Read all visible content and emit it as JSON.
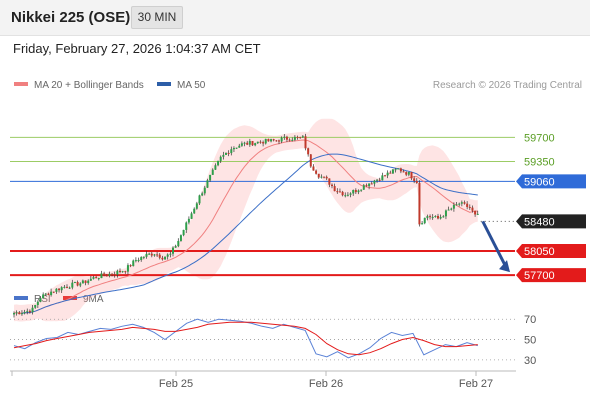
{
  "header": {
    "title": "Nikkei 225 (OSE)",
    "interval": "30 MIN",
    "datetime": "Friday, February 27, 2026 1:04:37 AM CET"
  },
  "legend": {
    "bollinger": "MA 20 + Bollinger Bands",
    "ma50": "MA 50",
    "rsi": "RSI",
    "rsi_ma": "9MA"
  },
  "credit": "Research © 2026 Trading Central",
  "colors": {
    "bull": "#2e9e4a",
    "bear": "#c0392b",
    "bollinger": "#f08080",
    "ma50": "#3b6fc7",
    "resistance": "#9ccc65",
    "pivot": "#2f6bd8",
    "support": "#e31b1b",
    "current": "#222222",
    "arrow": "#2a4f96"
  },
  "chart_data": [
    {
      "type": "candlestick",
      "price_axis_range": [
        57600,
        60300
      ],
      "x_ticks": [
        "Feb 25",
        "Feb 26",
        "Feb 27"
      ],
      "series": [
        {
          "name": "Price",
          "ohlc": []
        },
        {
          "name": "MA 20 + Bollinger Bands"
        },
        {
          "name": "MA 50"
        }
      ],
      "levels": [
        {
          "value": 59700,
          "label": "59700",
          "kind": "resistance"
        },
        {
          "value": 59350,
          "label": "59350",
          "kind": "resistance"
        },
        {
          "value": 59060,
          "label": "59060",
          "kind": "pivot"
        },
        {
          "value": 58480,
          "label": "58480",
          "kind": "current"
        },
        {
          "value": 58050,
          "label": "58050",
          "kind": "support"
        },
        {
          "value": 57700,
          "label": "57700",
          "kind": "support"
        }
      ],
      "close_path": [
        [
          0,
          57150
        ],
        [
          4,
          57170
        ],
        [
          7,
          57200
        ],
        [
          10,
          57380
        ],
        [
          14,
          57460
        ],
        [
          18,
          57520
        ],
        [
          22,
          57560
        ],
        [
          26,
          57590
        ],
        [
          30,
          57660
        ],
        [
          34,
          57700
        ],
        [
          38,
          57730
        ],
        [
          42,
          57780
        ],
        [
          46,
          57920
        ],
        [
          50,
          57990
        ],
        [
          53,
          58020
        ],
        [
          56,
          57960
        ],
        [
          59,
          58000
        ],
        [
          62,
          58200
        ],
        [
          66,
          58520
        ],
        [
          70,
          58840
        ],
        [
          74,
          59130
        ],
        [
          78,
          59400
        ],
        [
          82,
          59540
        ],
        [
          86,
          59600
        ],
        [
          90,
          59620
        ],
        [
          94,
          59640
        ],
        [
          98,
          59650
        ],
        [
          102,
          59680
        ],
        [
          106,
          59690
        ],
        [
          109,
          59690
        ],
        [
          112,
          59300
        ],
        [
          115,
          59150
        ],
        [
          118,
          59080
        ],
        [
          121,
          58950
        ],
        [
          125,
          58870
        ],
        [
          129,
          58930
        ],
        [
          133,
          59020
        ],
        [
          137,
          59090
        ],
        [
          141,
          59170
        ],
        [
          145,
          59240
        ],
        [
          149,
          59170
        ],
        [
          152,
          59060
        ],
        [
          153,
          58450
        ],
        [
          156,
          58560
        ],
        [
          160,
          58520
        ],
        [
          164,
          58640
        ],
        [
          168,
          58740
        ],
        [
          172,
          58680
        ],
        [
          174,
          58560
        ]
      ],
      "projection": {
        "from": 58480,
        "to": 57700,
        "direction": "down"
      }
    },
    {
      "type": "line",
      "title": "RSI",
      "y_ticks": [
        70,
        50,
        30
      ],
      "ylim": [
        20,
        85
      ],
      "series": [
        {
          "name": "RSI",
          "values": [
            44,
            41,
            47,
            51,
            52,
            57,
            55,
            58,
            61,
            60,
            63,
            65,
            62,
            57,
            50,
            58,
            66,
            70,
            67,
            70,
            69,
            68,
            66,
            63,
            61,
            65,
            62,
            59,
            36,
            33,
            38,
            32,
            36,
            42,
            51,
            57,
            54,
            56,
            35,
            40,
            45,
            43,
            47,
            44
          ]
        },
        {
          "name": "9MA",
          "values": [
            42,
            44,
            46,
            49,
            51,
            53,
            55,
            57,
            58,
            59,
            60,
            62,
            61,
            60,
            58,
            58,
            60,
            62,
            65,
            66,
            67,
            67,
            67,
            66,
            65,
            64,
            63,
            61,
            55,
            46,
            40,
            36,
            35,
            37,
            41,
            46,
            50,
            52,
            49,
            45,
            43,
            43,
            44,
            45
          ]
        }
      ]
    }
  ]
}
